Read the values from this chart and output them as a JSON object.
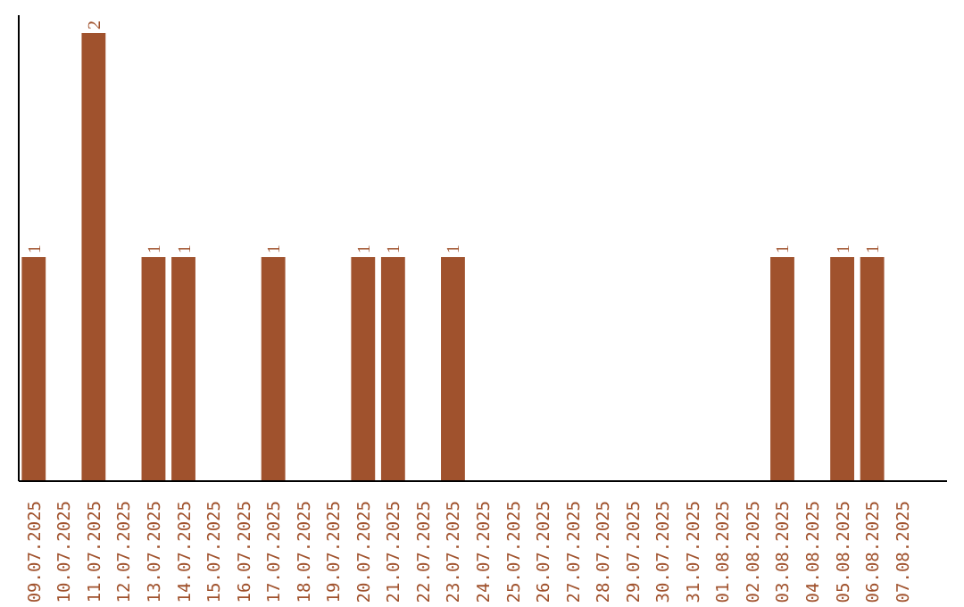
{
  "chart_data": {
    "type": "bar",
    "categories": [
      "09.07.2025",
      "10.07.2025",
      "11.07.2025",
      "12.07.2025",
      "13.07.2025",
      "14.07.2025",
      "15.07.2025",
      "16.07.2025",
      "17.07.2025",
      "18.07.2025",
      "19.07.2025",
      "20.07.2025",
      "21.07.2025",
      "22.07.2025",
      "23.07.2025",
      "24.07.2025",
      "25.07.2025",
      "26.07.2025",
      "27.07.2025",
      "28.07.2025",
      "29.07.2025",
      "30.07.2025",
      "31.07.2025",
      "01.08.2025",
      "02.08.2025",
      "03.08.2025",
      "04.08.2025",
      "05.08.2025",
      "06.08.2025",
      "07.08.2025"
    ],
    "values": [
      1,
      0,
      2,
      0,
      1,
      1,
      0,
      0,
      1,
      0,
      0,
      1,
      1,
      0,
      1,
      0,
      0,
      0,
      0,
      0,
      0,
      0,
      0,
      0,
      0,
      1,
      0,
      1,
      1,
      0
    ],
    "value_labels": [
      "1",
      null,
      "2",
      null,
      "1",
      "1",
      null,
      null,
      "1",
      null,
      null,
      "1",
      "1",
      null,
      "1",
      null,
      null,
      null,
      null,
      null,
      null,
      null,
      null,
      null,
      null,
      "1",
      null,
      "1",
      "1",
      null
    ],
    "color": "#a0522d",
    "tick_labels": "x",
    "grid": false
  }
}
